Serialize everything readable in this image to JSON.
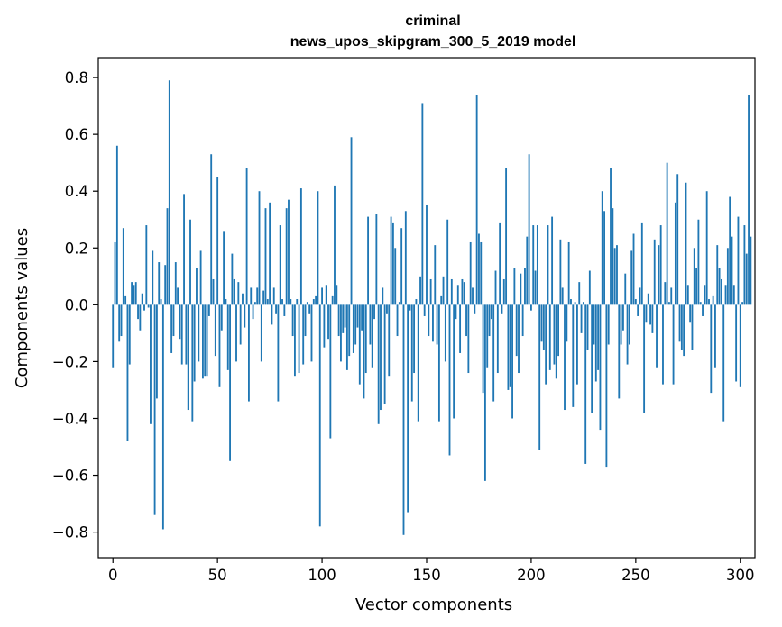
{
  "chart_data": {
    "type": "bar",
    "title_lines": [
      "criminal",
      "news_upos_skipgram_300_5_2019 model"
    ],
    "xlabel": "Vector components",
    "ylabel": "Components values",
    "xlim": [
      -7,
      307
    ],
    "ylim": [
      -0.89,
      0.87
    ],
    "xticks": [
      0,
      50,
      100,
      150,
      200,
      250,
      300
    ],
    "yticks": [
      -0.8,
      -0.6,
      -0.4,
      -0.2,
      0.0,
      0.2,
      0.4,
      0.6,
      0.8
    ],
    "ytick_labels": [
      "−0.8",
      "−0.6",
      "−0.4",
      "−0.2",
      "0.0",
      "0.2",
      "0.4",
      "0.6",
      "0.8"
    ],
    "grid": false,
    "bar_color": "#1f77b4",
    "values": [
      -0.22,
      0.22,
      0.56,
      -0.13,
      -0.11,
      0.27,
      0.03,
      -0.48,
      -0.21,
      0.08,
      0.07,
      0.08,
      -0.05,
      -0.09,
      0.04,
      -0.02,
      0.28,
      -0.01,
      -0.42,
      0.19,
      -0.74,
      -0.33,
      0.15,
      0.02,
      -0.79,
      0.14,
      0.34,
      0.79,
      -0.17,
      -0.11,
      0.15,
      0.06,
      -0.12,
      -0.21,
      0.39,
      -0.21,
      -0.37,
      0.3,
      -0.41,
      -0.27,
      0.13,
      -0.2,
      0.19,
      -0.26,
      -0.25,
      -0.25,
      -0.04,
      0.53,
      0.09,
      -0.18,
      0.45,
      -0.29,
      -0.09,
      0.26,
      0.02,
      -0.23,
      -0.55,
      0.18,
      0.09,
      -0.2,
      0.08,
      -0.14,
      0.04,
      -0.08,
      0.48,
      -0.34,
      0.06,
      -0.05,
      0.01,
      0.06,
      0.4,
      -0.2,
      0.05,
      0.34,
      0.02,
      0.36,
      -0.07,
      0.06,
      -0.03,
      -0.34,
      0.28,
      0.02,
      -0.04,
      0.34,
      0.37,
      0.02,
      -0.11,
      -0.25,
      0.02,
      -0.24,
      0.41,
      -0.21,
      -0.11,
      0.01,
      -0.03,
      -0.2,
      0.02,
      0.03,
      0.4,
      -0.78,
      0.06,
      -0.15,
      0.07,
      -0.12,
      -0.47,
      0.03,
      0.42,
      0.07,
      -0.11,
      -0.2,
      -0.1,
      -0.08,
      -0.23,
      -0.18,
      0.59,
      -0.17,
      -0.14,
      -0.08,
      -0.28,
      -0.09,
      -0.33,
      -0.24,
      0.31,
      -0.14,
      -0.22,
      -0.05,
      0.32,
      -0.42,
      -0.37,
      0.06,
      -0.35,
      -0.03,
      -0.25,
      0.31,
      0.29,
      0.2,
      -0.11,
      0.01,
      0.27,
      -0.81,
      0.33,
      -0.73,
      -0.02,
      -0.34,
      -0.24,
      0.02,
      -0.41,
      0.1,
      0.71,
      -0.04,
      0.35,
      -0.11,
      0.09,
      -0.13,
      0.21,
      -0.14,
      -0.41,
      0.03,
      0.1,
      -0.2,
      0.3,
      -0.53,
      0.09,
      -0.4,
      -0.05,
      0.07,
      -0.17,
      0.09,
      0.08,
      -0.11,
      -0.24,
      0.22,
      0.06,
      -0.03,
      0.74,
      0.25,
      0.22,
      -0.31,
      -0.62,
      -0.22,
      -0.11,
      -0.05,
      -0.34,
      0.12,
      -0.24,
      0.29,
      -0.03,
      0.09,
      0.48,
      -0.3,
      -0.29,
      -0.4,
      0.13,
      -0.18,
      -0.24,
      0.11,
      -0.11,
      0.13,
      0.24,
      0.53,
      -0.02,
      0.28,
      0.12,
      0.28,
      -0.51,
      -0.13,
      -0.16,
      -0.28,
      0.28,
      -0.23,
      0.31,
      -0.21,
      -0.26,
      -0.18,
      0.23,
      0.06,
      -0.37,
      -0.13,
      0.22,
      0.02,
      -0.36,
      0.01,
      -0.28,
      0.08,
      -0.1,
      0.01,
      -0.56,
      -0.16,
      0.12,
      -0.38,
      -0.14,
      -0.27,
      -0.23,
      -0.44,
      0.4,
      0.33,
      -0.57,
      -0.14,
      0.48,
      0.34,
      0.2,
      0.21,
      -0.33,
      -0.14,
      -0.09,
      0.11,
      -0.21,
      -0.14,
      0.19,
      0.25,
      0.02,
      -0.04,
      0.06,
      0.29,
      -0.38,
      -0.06,
      0.04,
      -0.07,
      -0.1,
      0.23,
      -0.22,
      0.21,
      0.28,
      -0.28,
      0.08,
      0.5,
      0.01,
      0.06,
      -0.28,
      0.36,
      0.46,
      -0.13,
      -0.16,
      -0.18,
      0.43,
      0.07,
      -0.06,
      -0.16,
      0.2,
      0.13,
      0.3,
      0.01,
      -0.04,
      0.07,
      0.4,
      0.02,
      -0.31,
      0.03,
      -0.22,
      0.21,
      0.13,
      0.09,
      -0.41,
      0.07,
      0.2,
      0.38,
      0.24,
      0.07,
      -0.27,
      0.31,
      -0.29,
      0.01,
      0.28,
      0.18,
      0.74,
      0.24
    ]
  }
}
